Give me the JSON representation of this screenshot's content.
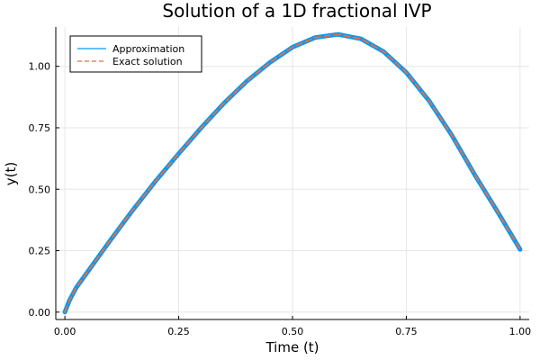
{
  "chart_data": {
    "type": "line",
    "title": "Solution of a 1D fractional IVP",
    "xlabel": "Time (t)",
    "ylabel": "y(t)",
    "xlim": [
      -0.02,
      1.02
    ],
    "ylim": [
      -0.03,
      1.16
    ],
    "xticks": [
      0.0,
      0.25,
      0.5,
      0.75,
      1.0
    ],
    "xtick_labels": [
      "0.00",
      "0.25",
      "0.50",
      "0.75",
      "1.00"
    ],
    "yticks": [
      0.0,
      0.25,
      0.5,
      0.75,
      1.0
    ],
    "ytick_labels": [
      "0.00",
      "0.25",
      "0.50",
      "0.75",
      "1.00"
    ],
    "grid": true,
    "legend_position": "top-left",
    "x": [
      0.0,
      0.01,
      0.025,
      0.05,
      0.1,
      0.15,
      0.2,
      0.25,
      0.3,
      0.35,
      0.4,
      0.45,
      0.5,
      0.55,
      0.6,
      0.65,
      0.7,
      0.75,
      0.8,
      0.85,
      0.9,
      0.95,
      1.0
    ],
    "series": [
      {
        "name": "Approximation",
        "color": "#009af9",
        "style": "solid",
        "values": [
          0.0,
          0.048,
          0.1,
          0.164,
          0.293,
          0.417,
          0.535,
          0.645,
          0.751,
          0.851,
          0.94,
          1.015,
          1.078,
          1.117,
          1.13,
          1.112,
          1.06,
          0.975,
          0.86,
          0.72,
          0.56,
          0.41,
          0.255
        ]
      },
      {
        "name": "Exact solution",
        "color": "#e26f46",
        "style": "dashed",
        "values": [
          0.0,
          0.048,
          0.1,
          0.164,
          0.293,
          0.417,
          0.535,
          0.645,
          0.751,
          0.851,
          0.94,
          1.015,
          1.078,
          1.117,
          1.13,
          1.112,
          1.06,
          0.975,
          0.86,
          0.72,
          0.56,
          0.41,
          0.255
        ]
      }
    ]
  }
}
